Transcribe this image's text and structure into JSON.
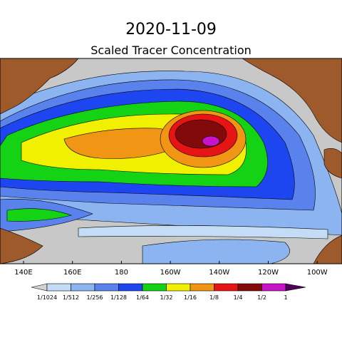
{
  "title": "2020-11-09",
  "subtitle": "Scaled Tracer Concentration",
  "longitude_labels": [
    "140E",
    "160E",
    "180",
    "160W",
    "140W",
    "120W",
    "100W"
  ],
  "colorbar": {
    "labels": [
      "1/1024",
      "1/512",
      "1/256",
      "1/128",
      "1/64",
      "1/32",
      "1/16",
      "1/8",
      "1/4",
      "1/2",
      "1"
    ],
    "colors": [
      "#d2d2d2",
      "#c4dcf6",
      "#8cb4f0",
      "#5a82ec",
      "#1e46f0",
      "#14d214",
      "#f0f000",
      "#f09614",
      "#e61414",
      "#820a0a",
      "#c814c8",
      "#50005a"
    ]
  },
  "land_color": "#9e5a2a",
  "ocean_color": "#c8c8c8"
}
